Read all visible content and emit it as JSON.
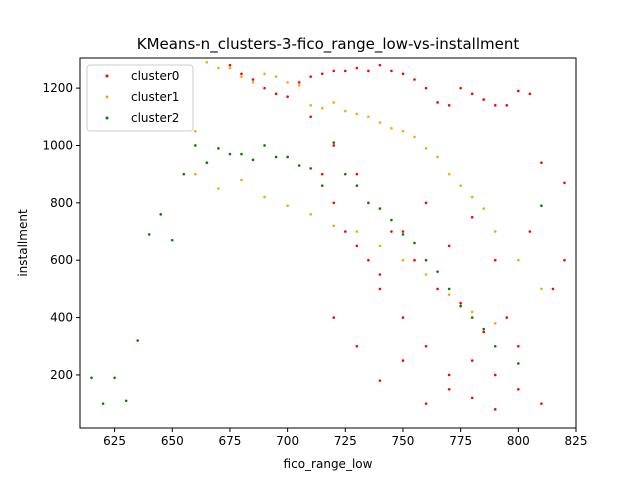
{
  "chart_data": {
    "type": "scatter",
    "title": "KMeans-n_clusters-3-fico_range_low-vs-installment",
    "xlabel": "fico_range_low",
    "ylabel": "installment",
    "xlim": [
      610,
      825
    ],
    "ylim": [
      15,
      1305
    ],
    "xticks": [
      625,
      650,
      675,
      700,
      725,
      750,
      775,
      800,
      825
    ],
    "yticks": [
      200,
      400,
      600,
      800,
      1000,
      1200
    ],
    "grid": false,
    "legend_position": "top-left",
    "series": [
      {
        "name": "cluster0",
        "color": "#ff0000",
        "x": [
          820,
          810,
          805,
          800,
          795,
          790,
          785,
          780,
          775,
          770,
          765,
          760,
          755,
          750,
          745,
          740,
          735,
          730,
          725,
          720,
          715,
          710,
          705,
          820,
          815,
          805,
          790,
          780,
          770,
          760,
          750,
          740,
          730,
          720,
          710,
          700,
          695,
          690,
          685,
          680,
          675,
          800,
          795,
          790,
          785,
          780,
          775,
          770,
          765,
          760,
          755,
          750,
          745,
          740,
          735,
          730,
          725,
          720,
          715,
          810,
          800,
          790,
          780,
          770,
          760,
          750,
          740,
          730,
          720
        ],
        "y": [
          870,
          940,
          1180,
          1190,
          1140,
          1140,
          1160,
          1180,
          1200,
          1140,
          1150,
          1200,
          1230,
          1250,
          1260,
          1280,
          1260,
          1270,
          1260,
          1260,
          1250,
          1240,
          1220,
          600,
          500,
          700,
          600,
          750,
          650,
          800,
          700,
          500,
          900,
          1000,
          1100,
          1170,
          1180,
          1200,
          1230,
          1250,
          1280,
          300,
          400,
          200,
          350,
          250,
          450,
          150,
          500,
          300,
          600,
          400,
          700,
          550,
          600,
          650,
          700,
          800,
          900,
          100,
          150,
          80,
          120,
          200,
          100,
          250,
          180,
          300,
          400
        ]
      },
      {
        "name": "cluster1",
        "color": "#ffa500",
        "x": [
          660,
          665,
          670,
          675,
          680,
          685,
          690,
          695,
          700,
          705,
          710,
          715,
          720,
          725,
          730,
          735,
          740,
          745,
          750,
          755,
          760,
          765,
          770,
          775,
          780,
          785,
          790,
          800,
          810,
          660,
          670,
          680,
          690,
          700,
          710,
          720,
          730,
          740,
          750,
          760,
          770,
          780,
          790
        ],
        "y": [
          1050,
          1290,
          1270,
          1270,
          1240,
          1220,
          1250,
          1240,
          1220,
          1210,
          1140,
          1130,
          1150,
          1120,
          1110,
          1100,
          1080,
          1060,
          1050,
          1030,
          990,
          960,
          900,
          860,
          820,
          780,
          700,
          600,
          500,
          900,
          850,
          880,
          820,
          790,
          760,
          720,
          700,
          650,
          600,
          550,
          480,
          420,
          380
        ]
      },
      {
        "name": "cluster2",
        "color": "#008000",
        "x": [
          615,
          620,
          625,
          630,
          635,
          640,
          645,
          650,
          655,
          660,
          665,
          670,
          675,
          680,
          685,
          690,
          695,
          700,
          705,
          710,
          715,
          720,
          725,
          730,
          735,
          740,
          745,
          750,
          755,
          760,
          765,
          770,
          775,
          780,
          785,
          790,
          800,
          810
        ],
        "y": [
          190,
          100,
          190,
          110,
          320,
          690,
          760,
          670,
          900,
          1000,
          940,
          990,
          970,
          970,
          950,
          1000,
          960,
          960,
          930,
          920,
          860,
          1010,
          900,
          860,
          800,
          780,
          740,
          690,
          660,
          600,
          560,
          500,
          440,
          400,
          360,
          300,
          240,
          790
        ]
      }
    ]
  }
}
